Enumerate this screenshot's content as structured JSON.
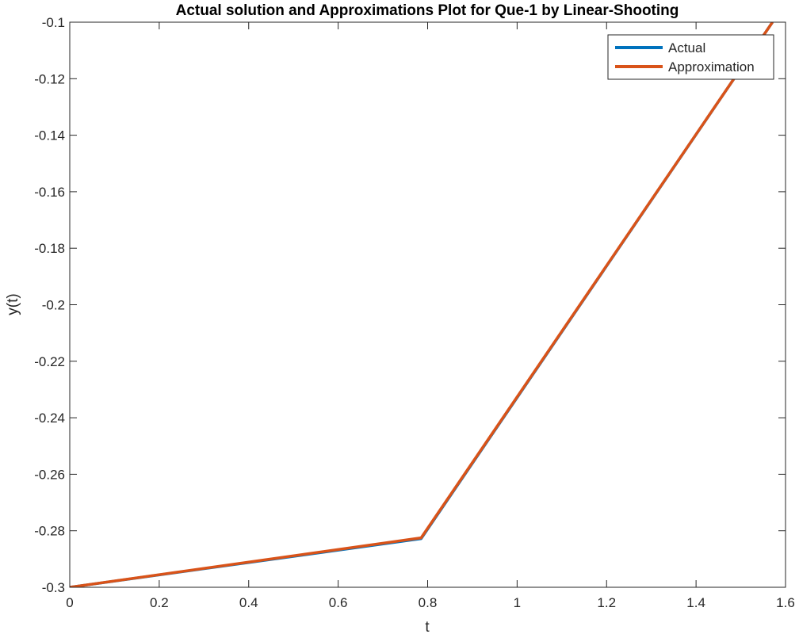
{
  "chart_data": {
    "type": "line",
    "title": "Actual solution and Approximations Plot for Que-1 by Linear-Shooting",
    "xlabel": "t",
    "ylabel": "y(t)",
    "xlim": [
      0,
      1.6
    ],
    "ylim": [
      -0.3,
      -0.1
    ],
    "xticks": [
      0,
      0.2,
      0.4,
      0.6,
      0.8,
      1,
      1.2,
      1.4,
      1.6
    ],
    "xtick_labels": [
      "0",
      "0.2",
      "0.4",
      "0.6",
      "0.8",
      "1",
      "1.2",
      "1.4",
      "1.6"
    ],
    "yticks": [
      -0.3,
      -0.28,
      -0.26,
      -0.24,
      -0.22,
      -0.2,
      -0.18,
      -0.16,
      -0.14,
      -0.12,
      -0.1
    ],
    "ytick_labels": [
      "-0.3",
      "-0.28",
      "-0.26",
      "-0.24",
      "-0.22",
      "-0.2",
      "-0.18",
      "-0.16",
      "-0.14",
      "-0.12",
      "-0.1"
    ],
    "grid": false,
    "legend_position": "top-right",
    "series": [
      {
        "name": "Actual",
        "color": "#0072BD",
        "x": [
          0,
          0.7854,
          1.5708
        ],
        "y": [
          -0.3,
          -0.2828,
          -0.1
        ]
      },
      {
        "name": "Approximation",
        "color": "#D95319",
        "x": [
          0,
          0.7854,
          1.5708
        ],
        "y": [
          -0.3,
          -0.2825,
          -0.1
        ]
      }
    ]
  }
}
